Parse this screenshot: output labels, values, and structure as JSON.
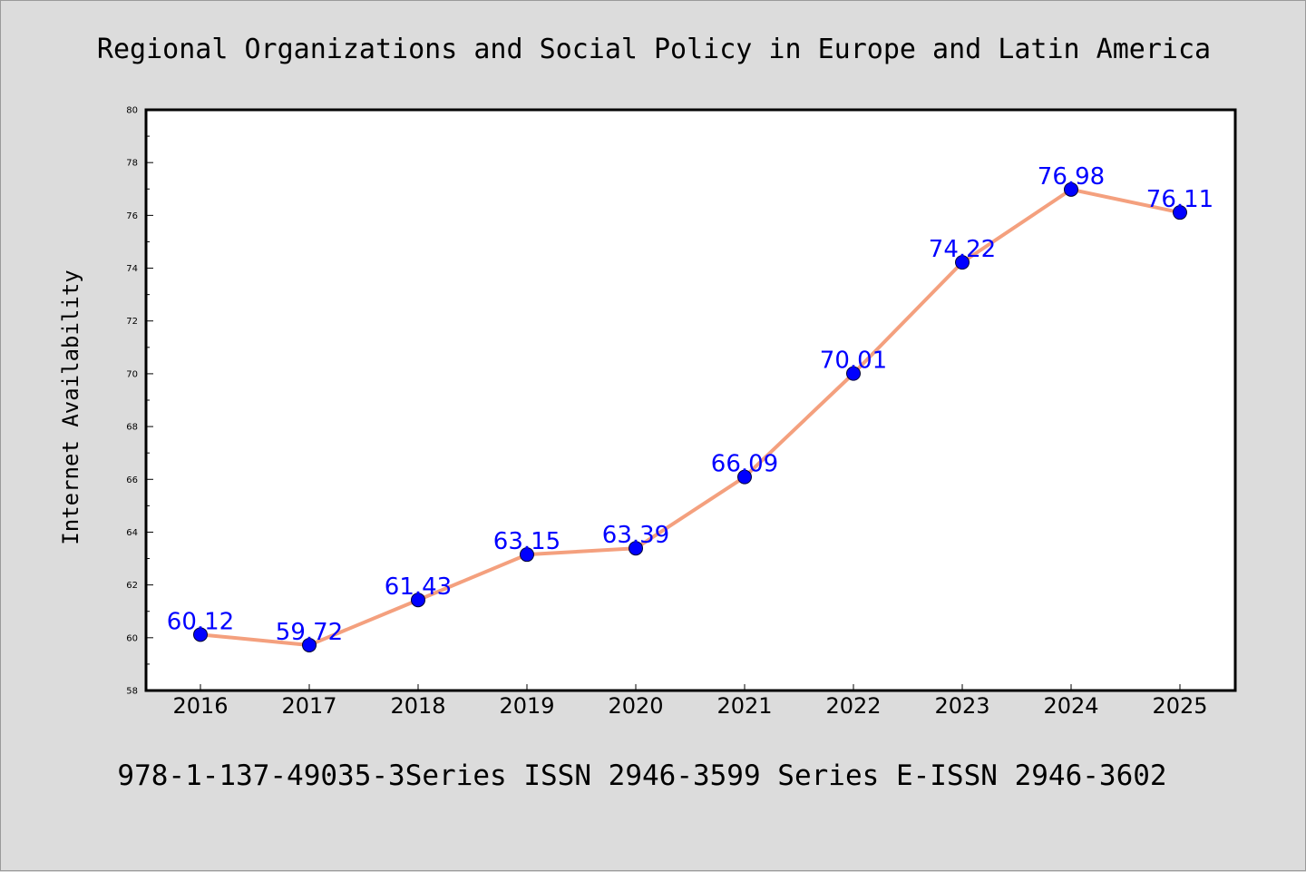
{
  "chart_data": {
    "type": "line",
    "title": "Regional Organizations and Social Policy in Europe and Latin America",
    "ylabel": "Internet Availability",
    "xlabel": "",
    "categories": [
      "2016",
      "2017",
      "2018",
      "2019",
      "2020",
      "2021",
      "2022",
      "2023",
      "2024",
      "2025"
    ],
    "series": [
      {
        "values": [
          60.12,
          59.72,
          61.43,
          63.15,
          63.39,
          66.09,
          70.01,
          74.22,
          76.98,
          76.11
        ],
        "line_color": "#f4a07e",
        "marker_color": "#0000ff"
      }
    ],
    "data_labels": [
      "60.12",
      "59.72",
      "61.43",
      "63.15",
      "63.39",
      "66.09",
      "70.01",
      "74.22",
      "76.98",
      "76.11"
    ],
    "ylim": [
      58,
      80
    ],
    "yticks": [
      "58",
      "60",
      "62",
      "64",
      "66",
      "68",
      "70",
      "72",
      "74",
      "76",
      "78",
      "80"
    ],
    "grid": false,
    "legend": false
  },
  "footer": {
    "text": "978-1-137-49035-3Series ISSN 2946-3599 Series E-ISSN 2946-3602"
  },
  "colors": {
    "background": "#dcdcdc",
    "plot_background": "#ffffff",
    "line": "#f4a07e",
    "marker": "#0000ff",
    "data_label": "#0000ff"
  }
}
